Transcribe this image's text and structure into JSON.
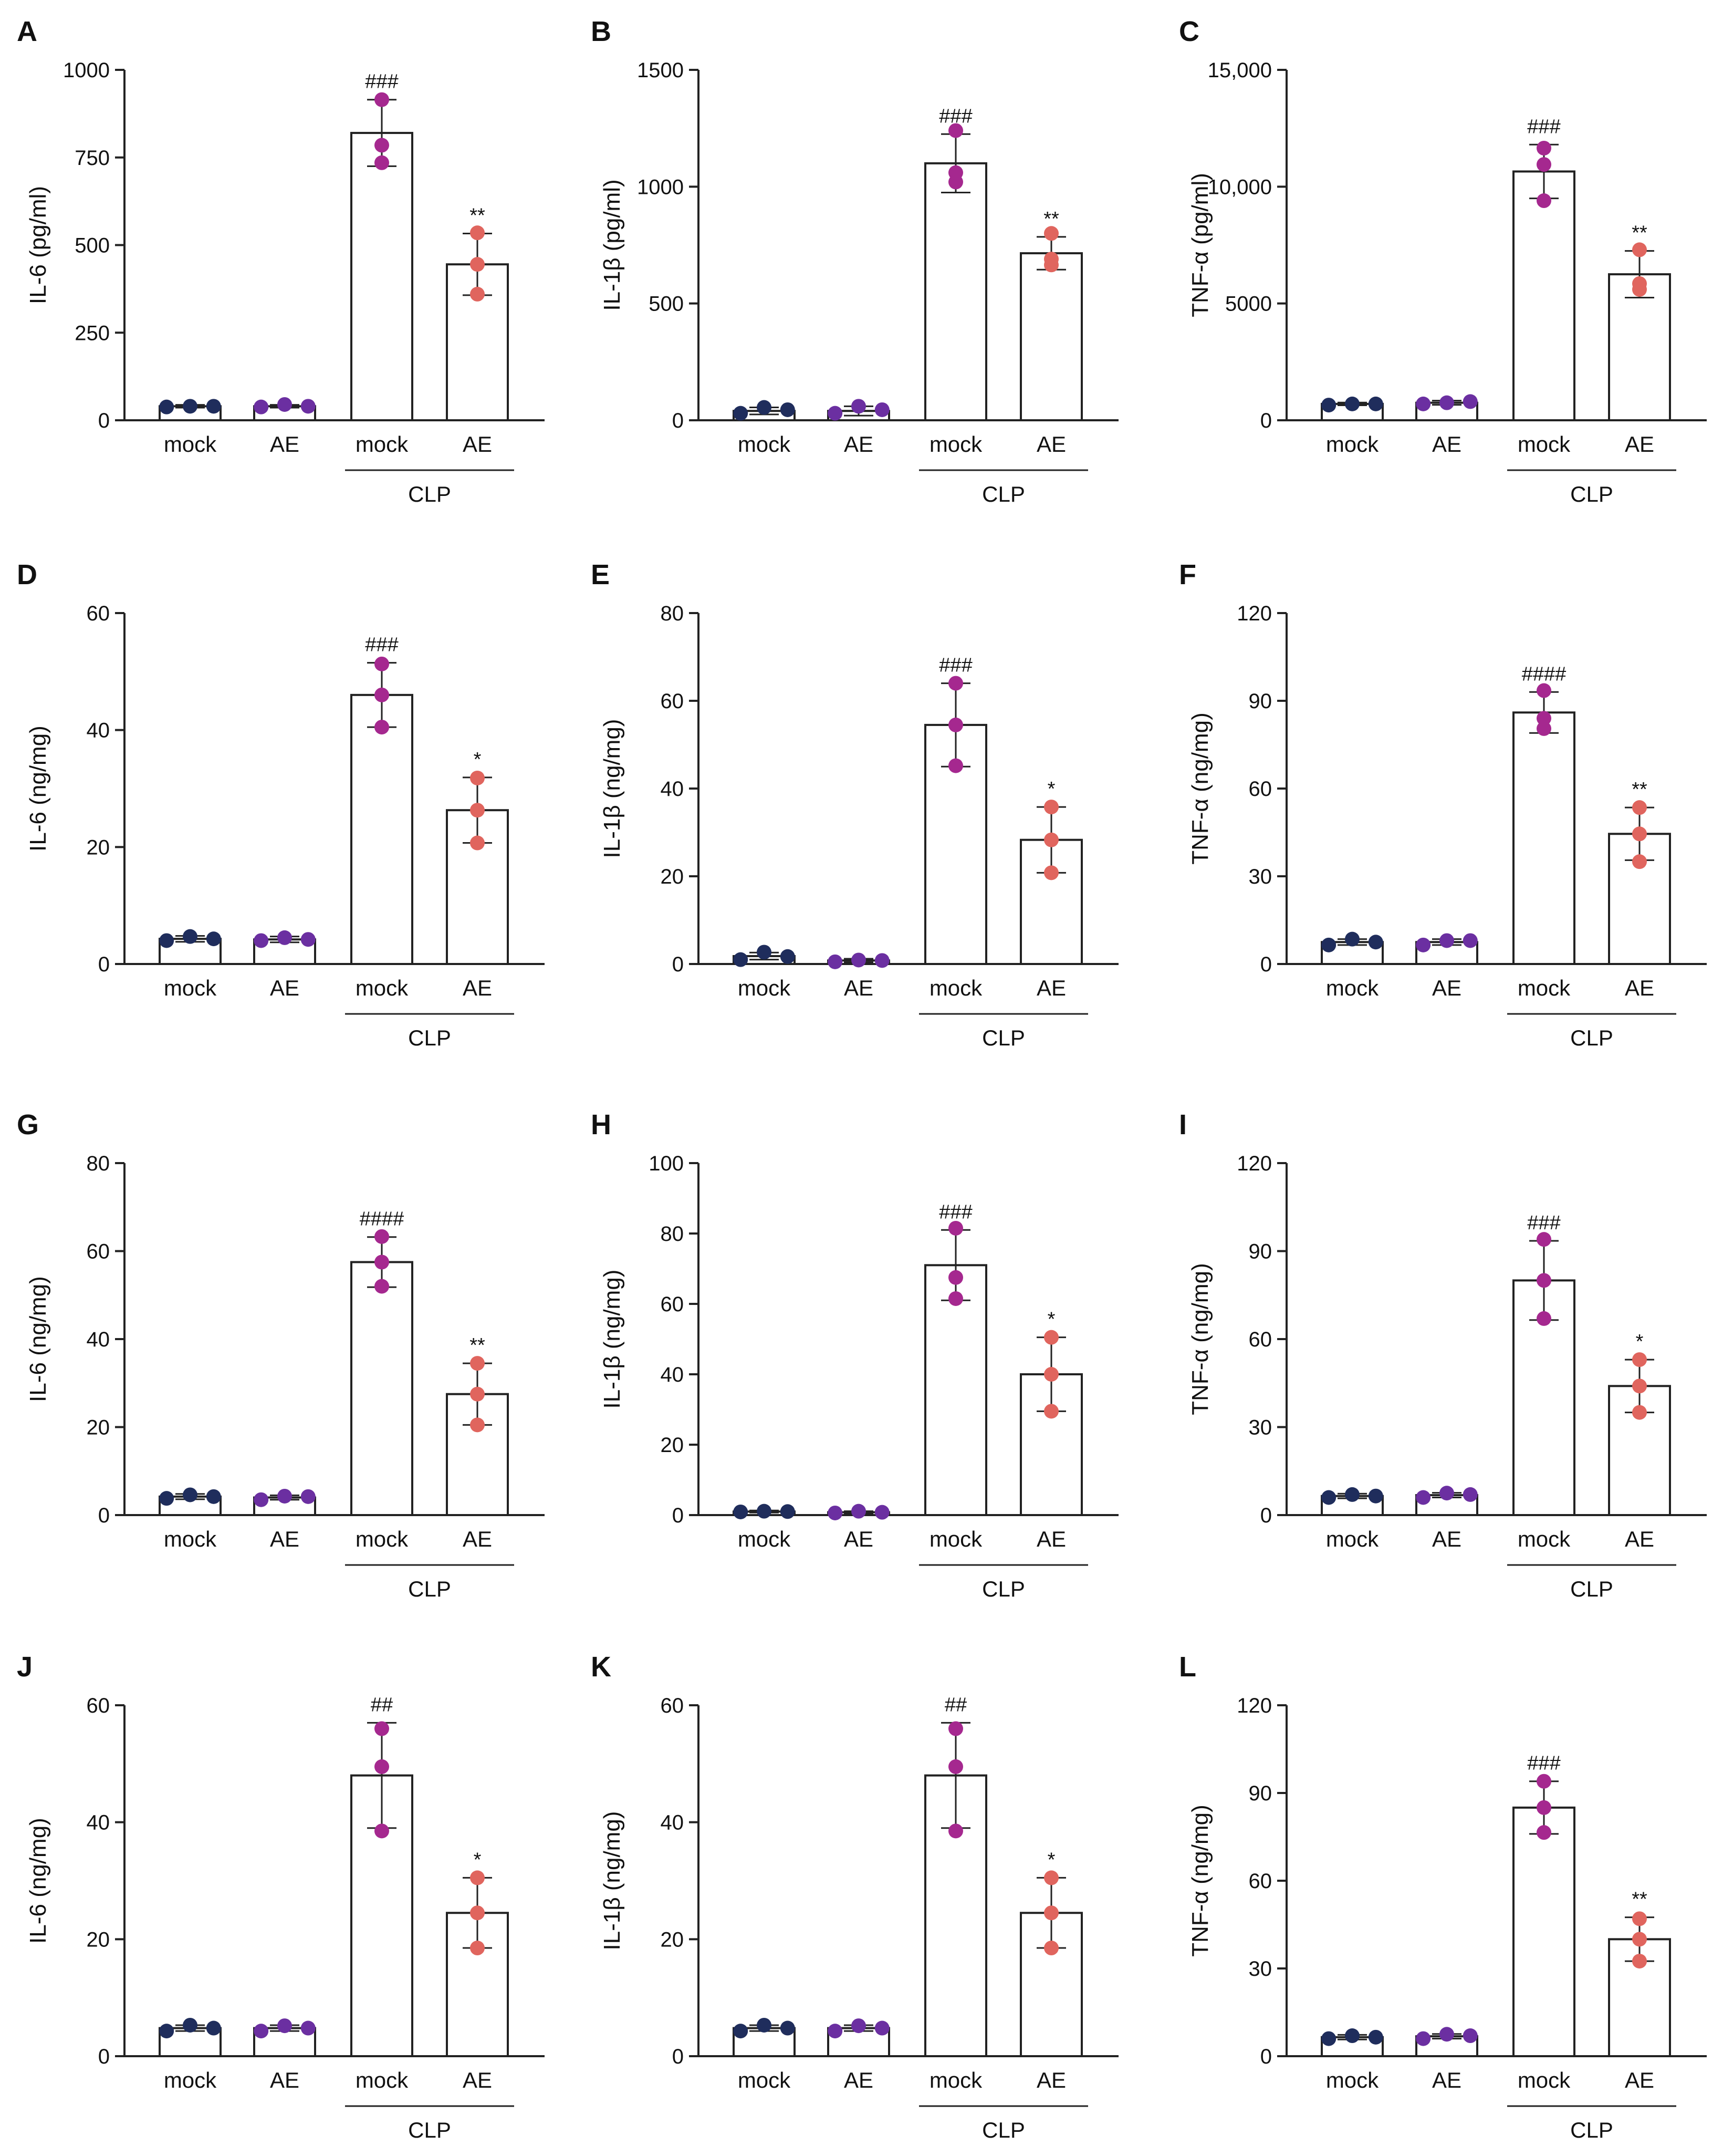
{
  "group_colors": [
    "#1f2d5c",
    "#6b2fa1",
    "#a5288f",
    "#e0655e"
  ],
  "chart_data": [
    {
      "panel": "A",
      "type": "bar",
      "ylabel": "IL-6  (pg/ml)",
      "ylim": [
        0,
        1000
      ],
      "yticks": [
        "0",
        "250",
        "500",
        "750",
        "1000"
      ],
      "tick_values": [
        0,
        250,
        500,
        750,
        1000
      ],
      "categories": [
        "mock",
        "AE",
        "mock",
        "AE"
      ],
      "group_label": "CLP",
      "means": [
        40,
        40,
        820,
        445
      ],
      "sd": [
        4,
        4,
        95,
        88
      ],
      "points": [
        [
          38,
          40,
          40
        ],
        [
          38,
          45,
          40
        ],
        [
          735,
          785,
          915
        ],
        [
          360,
          445,
          535
        ]
      ],
      "annotations": [
        "",
        "",
        "###",
        "**"
      ]
    },
    {
      "panel": "B",
      "type": "bar",
      "ylabel": "IL-1β  (pg/ml)",
      "ylim": [
        0,
        1500
      ],
      "yticks": [
        "0",
        "500",
        "1000",
        "1500"
      ],
      "tick_values": [
        0,
        500,
        1000,
        1500
      ],
      "categories": [
        "mock",
        "AE",
        "mock",
        "AE"
      ],
      "group_label": "CLP",
      "means": [
        40,
        40,
        1100,
        715
      ],
      "sd": [
        15,
        20,
        125,
        70
      ],
      "points": [
        [
          30,
          55,
          45
        ],
        [
          30,
          60,
          45
        ],
        [
          1020,
          1240,
          1060
        ],
        [
          665,
          800,
          690
        ]
      ],
      "annotations": [
        "",
        "",
        "###",
        "**"
      ]
    },
    {
      "panel": "C",
      "type": "bar",
      "ylabel": "TNF-α  (pg/ml)",
      "ylim": [
        0,
        15000
      ],
      "yticks": [
        "0",
        "5000",
        "10,000",
        "15,000"
      ],
      "tick_values": [
        0,
        5000,
        10000,
        15000
      ],
      "categories": [
        "mock",
        "AE",
        "mock",
        "AE"
      ],
      "group_label": "CLP",
      "means": [
        700,
        750,
        10650,
        6250
      ],
      "sd": [
        60,
        90,
        1150,
        1000
      ],
      "points": [
        [
          650,
          700,
          700
        ],
        [
          700,
          750,
          800
        ],
        [
          11650,
          9400,
          10950
        ],
        [
          5600,
          7300,
          5850
        ]
      ],
      "annotations": [
        "",
        "",
        "###",
        "**"
      ]
    },
    {
      "panel": "D",
      "type": "bar",
      "ylabel": "IL-6  (ng/mg)",
      "ylim": [
        0,
        60
      ],
      "yticks": [
        "0",
        "20",
        "40",
        "60"
      ],
      "tick_values": [
        0,
        20,
        40,
        60
      ],
      "categories": [
        "mock",
        "AE",
        "mock",
        "AE"
      ],
      "group_label": "CLP",
      "means": [
        4.3,
        4.2,
        46,
        26.3
      ],
      "sd": [
        0.5,
        0.5,
        5.5,
        5.6
      ],
      "points": [
        [
          4,
          4.7,
          4.3
        ],
        [
          4,
          4.5,
          4.2
        ],
        [
          40.5,
          46,
          51.3
        ],
        [
          20.7,
          26.3,
          31.8
        ]
      ],
      "annotations": [
        "",
        "",
        "###",
        "*"
      ]
    },
    {
      "panel": "E",
      "type": "bar",
      "ylabel": "IL-1β  (ng/mg)",
      "ylim": [
        0,
        80
      ],
      "yticks": [
        "0",
        "20",
        "40",
        "60",
        "80"
      ],
      "tick_values": [
        0,
        20,
        40,
        60,
        80
      ],
      "categories": [
        "mock",
        "AE",
        "mock",
        "AE"
      ],
      "group_label": "CLP",
      "means": [
        1.8,
        0.8,
        54.5,
        28.3
      ],
      "sd": [
        0.8,
        0.4,
        9.5,
        7.5
      ],
      "points": [
        [
          1,
          2.7,
          1.7
        ],
        [
          0.5,
          0.9,
          0.8
        ],
        [
          45.2,
          54.5,
          64
        ],
        [
          20.8,
          28.3,
          35.8
        ]
      ],
      "annotations": [
        "",
        "",
        "###",
        "*"
      ]
    },
    {
      "panel": "F",
      "type": "bar",
      "ylabel": "TNF-α  (ng/mg)",
      "ylim": [
        0,
        120
      ],
      "yticks": [
        "0",
        "30",
        "60",
        "90",
        "120"
      ],
      "tick_values": [
        0,
        30,
        60,
        90,
        120
      ],
      "categories": [
        "mock",
        "AE",
        "mock",
        "AE"
      ],
      "group_label": "CLP",
      "means": [
        7.5,
        7.5,
        86,
        44.5
      ],
      "sd": [
        1,
        1,
        7,
        9
      ],
      "points": [
        [
          6.5,
          8.5,
          7.5
        ],
        [
          6.5,
          8,
          8
        ],
        [
          80.5,
          93.5,
          84
        ],
        [
          35,
          44.5,
          53.5
        ]
      ],
      "annotations": [
        "",
        "",
        "####",
        "**"
      ]
    },
    {
      "panel": "G",
      "type": "bar",
      "ylabel": "IL-6  (ng/mg)",
      "ylim": [
        0,
        80
      ],
      "yticks": [
        "0",
        "20",
        "40",
        "60",
        "80"
      ],
      "tick_values": [
        0,
        20,
        40,
        60,
        80
      ],
      "categories": [
        "mock",
        "AE",
        "mock",
        "AE"
      ],
      "group_label": "CLP",
      "means": [
        4.2,
        4,
        57.5,
        27.5
      ],
      "sd": [
        0.6,
        0.5,
        5.7,
        7
      ],
      "points": [
        [
          3.8,
          4.6,
          4.2
        ],
        [
          3.5,
          4.3,
          4.2
        ],
        [
          52,
          57.5,
          63.3
        ],
        [
          20.5,
          27.5,
          34.5
        ]
      ],
      "annotations": [
        "",
        "",
        "####",
        "**"
      ]
    },
    {
      "panel": "H",
      "type": "bar",
      "ylabel": "IL-1β  (ng/mg)",
      "ylim": [
        0,
        100
      ],
      "yticks": [
        "0",
        "20",
        "40",
        "60",
        "80",
        "100"
      ],
      "tick_values": [
        0,
        20,
        40,
        60,
        80,
        100
      ],
      "categories": [
        "mock",
        "AE",
        "mock",
        "AE"
      ],
      "group_label": "CLP",
      "means": [
        1,
        0.8,
        71,
        40
      ],
      "sd": [
        0.3,
        0.3,
        10,
        10.5
      ],
      "points": [
        [
          0.9,
          1.1,
          1
        ],
        [
          0.6,
          1.1,
          0.8
        ],
        [
          61.5,
          81.5,
          67.5
        ],
        [
          29.5,
          40,
          50.5
        ]
      ],
      "annotations": [
        "",
        "",
        "###",
        "*"
      ]
    },
    {
      "panel": "I",
      "type": "bar",
      "ylabel": "TNF-α  (ng/mg)",
      "ylim": [
        0,
        120
      ],
      "yticks": [
        "0",
        "30",
        "60",
        "90",
        "120"
      ],
      "tick_values": [
        0,
        30,
        60,
        90,
        120
      ],
      "categories": [
        "mock",
        "AE",
        "mock",
        "AE"
      ],
      "group_label": "CLP",
      "means": [
        6.5,
        6.8,
        80,
        44
      ],
      "sd": [
        0.8,
        0.8,
        13.5,
        9
      ],
      "points": [
        [
          6,
          7,
          6.5
        ],
        [
          6,
          7.5,
          7
        ],
        [
          67,
          80,
          94
        ],
        [
          35,
          44,
          53
        ]
      ],
      "annotations": [
        "",
        "",
        "###",
        "*"
      ]
    },
    {
      "panel": "J",
      "type": "bar",
      "ylabel": "IL-6  (ng/mg)",
      "ylim": [
        0,
        60
      ],
      "yticks": [
        "0",
        "20",
        "40",
        "60"
      ],
      "tick_values": [
        0,
        20,
        40,
        60
      ],
      "categories": [
        "mock",
        "AE",
        "mock",
        "AE"
      ],
      "group_label": "CLP",
      "means": [
        4.8,
        4.8,
        48,
        24.5
      ],
      "sd": [
        0.5,
        0.5,
        9,
        6
      ],
      "points": [
        [
          4.3,
          5.3,
          4.8
        ],
        [
          4.3,
          5.2,
          4.8
        ],
        [
          38.5,
          49.5,
          56
        ],
        [
          18.5,
          24.5,
          30.5
        ]
      ],
      "annotations": [
        "",
        "",
        "##",
        "*"
      ]
    },
    {
      "panel": "K",
      "type": "bar",
      "ylabel": "IL-1β  (ng/mg)",
      "ylim": [
        0,
        60
      ],
      "yticks": [
        "0",
        "20",
        "40",
        "60"
      ],
      "tick_values": [
        0,
        20,
        40,
        60
      ],
      "categories": [
        "mock",
        "AE",
        "mock",
        "AE"
      ],
      "group_label": "CLP",
      "means": [
        4.8,
        4.8,
        48,
        24.5
      ],
      "sd": [
        0.5,
        0.5,
        9,
        6
      ],
      "points": [
        [
          4.3,
          5.3,
          4.8
        ],
        [
          4.3,
          5.2,
          4.8
        ],
        [
          38.5,
          49.5,
          56
        ],
        [
          18.5,
          24.5,
          30.5
        ]
      ],
      "annotations": [
        "",
        "",
        "##",
        "*"
      ]
    },
    {
      "panel": "L",
      "type": "bar",
      "ylabel": "TNF-α  (ng/mg)",
      "ylim": [
        0,
        120
      ],
      "yticks": [
        "0",
        "30",
        "60",
        "90",
        "120"
      ],
      "tick_values": [
        0,
        30,
        60,
        90,
        120
      ],
      "categories": [
        "mock",
        "AE",
        "mock",
        "AE"
      ],
      "group_label": "CLP",
      "means": [
        6.5,
        6.8,
        85,
        40
      ],
      "sd": [
        0.8,
        0.8,
        9,
        7.5
      ],
      "points": [
        [
          6,
          7,
          6.5
        ],
        [
          6,
          7.5,
          7
        ],
        [
          76.5,
          85,
          94
        ],
        [
          32.5,
          40,
          47
        ]
      ],
      "annotations": [
        "",
        "",
        "###",
        "**"
      ]
    }
  ]
}
